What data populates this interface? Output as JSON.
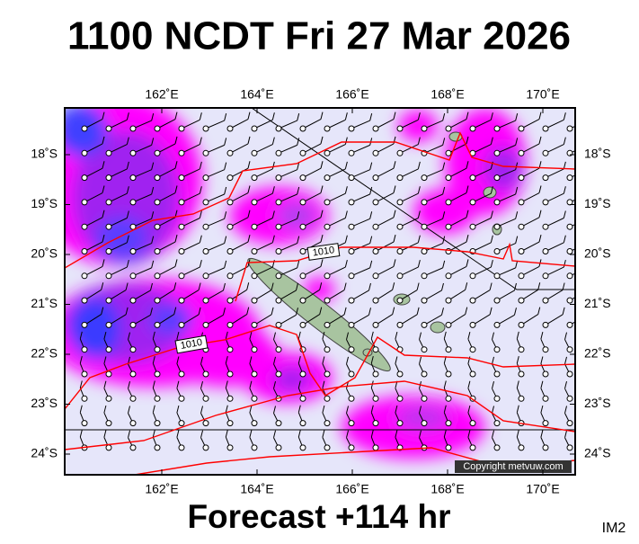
{
  "title": "1100 NCDT Fri 27 Mar 2026",
  "longitude_labels": [
    "162˚E",
    "164˚E",
    "166˚E",
    "168˚E",
    "170˚E"
  ],
  "latitude_labels": [
    "18˚S",
    "19˚S",
    "20˚S",
    "21˚S",
    "22˚S",
    "23˚S",
    "24˚S"
  ],
  "isobar_labels": [
    "1010",
    "1010"
  ],
  "copyright": "Copyright metvuw.com",
  "footer": "Forecast +114 hr",
  "image_id": "IM2"
}
